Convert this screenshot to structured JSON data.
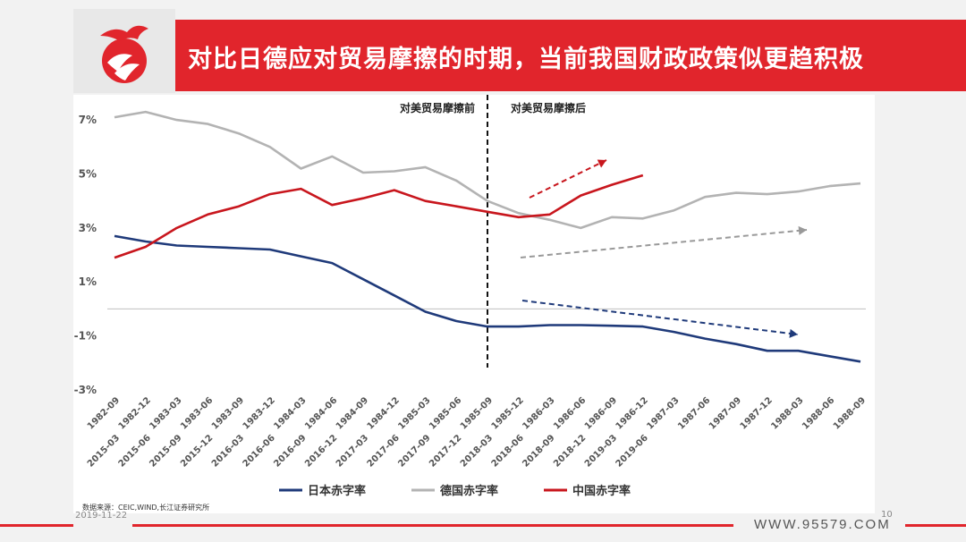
{
  "header": {
    "title": "对比日德应对贸易摩擦的时期，当前我国财政政策似更趋积极"
  },
  "footer": {
    "source": "数据来源：CEIC,WIND,长江证券研究所",
    "date": "2019-11-22",
    "page": "10",
    "site": "WWW.95579.COM"
  },
  "colors": {
    "brand_red": "#e1252c",
    "japan": "#1f3a7a",
    "germany": "#b3b3b3",
    "china": "#c8161d"
  },
  "chart_data": {
    "type": "line",
    "annotations": {
      "before": "对美贸易摩擦前",
      "after": "对美贸易摩擦后"
    },
    "y_ticks": [
      "7%",
      "5%",
      "3%",
      "1%",
      "-1%",
      "-3%"
    ],
    "ylim": [
      -3,
      7.6
    ],
    "x_upper": [
      "1982-09",
      "1982-12",
      "1983-03",
      "1983-06",
      "1983-09",
      "1983-12",
      "1984-03",
      "1984-06",
      "1984-09",
      "1984-12",
      "1985-03",
      "1985-06",
      "1985-09",
      "1985-12",
      "1986-03",
      "1986-06",
      "1986-09",
      "1986-12",
      "1987-03",
      "1987-06",
      "1987-09",
      "1987-12",
      "1988-03",
      "1988-06",
      "1988-09"
    ],
    "x_lower": [
      "2015-03",
      "2015-06",
      "2015-09",
      "2015-12",
      "2016-03",
      "2016-06",
      "2016-09",
      "2016-12",
      "2017-03",
      "2017-06",
      "2017-09",
      "2017-12",
      "2018-03",
      "2018-06",
      "2018-09",
      "2018-12",
      "2019-03",
      "2019-06"
    ],
    "series": [
      {
        "name": "日本赤字率",
        "axis": "upper",
        "values": [
          2.7,
          2.5,
          2.35,
          2.3,
          2.25,
          2.2,
          1.95,
          1.7,
          1.1,
          0.5,
          -0.1,
          -0.45,
          -0.65,
          -0.65,
          -0.6,
          -0.6,
          -0.62,
          -0.65,
          -0.85,
          -1.1,
          -1.3,
          -1.55,
          -1.55,
          -1.75,
          -1.95
        ]
      },
      {
        "name": "德国赤字率",
        "axis": "upper",
        "values": [
          7.1,
          7.3,
          7.0,
          6.85,
          6.5,
          6.0,
          5.2,
          5.65,
          5.05,
          5.1,
          5.25,
          4.75,
          4.0,
          3.55,
          3.3,
          3.0,
          3.4,
          3.35,
          3.65,
          4.15,
          4.3,
          4.25,
          4.35,
          4.55,
          4.65
        ]
      },
      {
        "name": "中国赤字率",
        "axis": "lower",
        "values": [
          1.9,
          2.3,
          3.0,
          3.5,
          3.8,
          4.25,
          4.45,
          3.85,
          4.1,
          4.4,
          4.0,
          3.8,
          3.6,
          3.4,
          3.5,
          4.2,
          4.6,
          4.95
        ]
      }
    ],
    "legend": "bottom"
  }
}
